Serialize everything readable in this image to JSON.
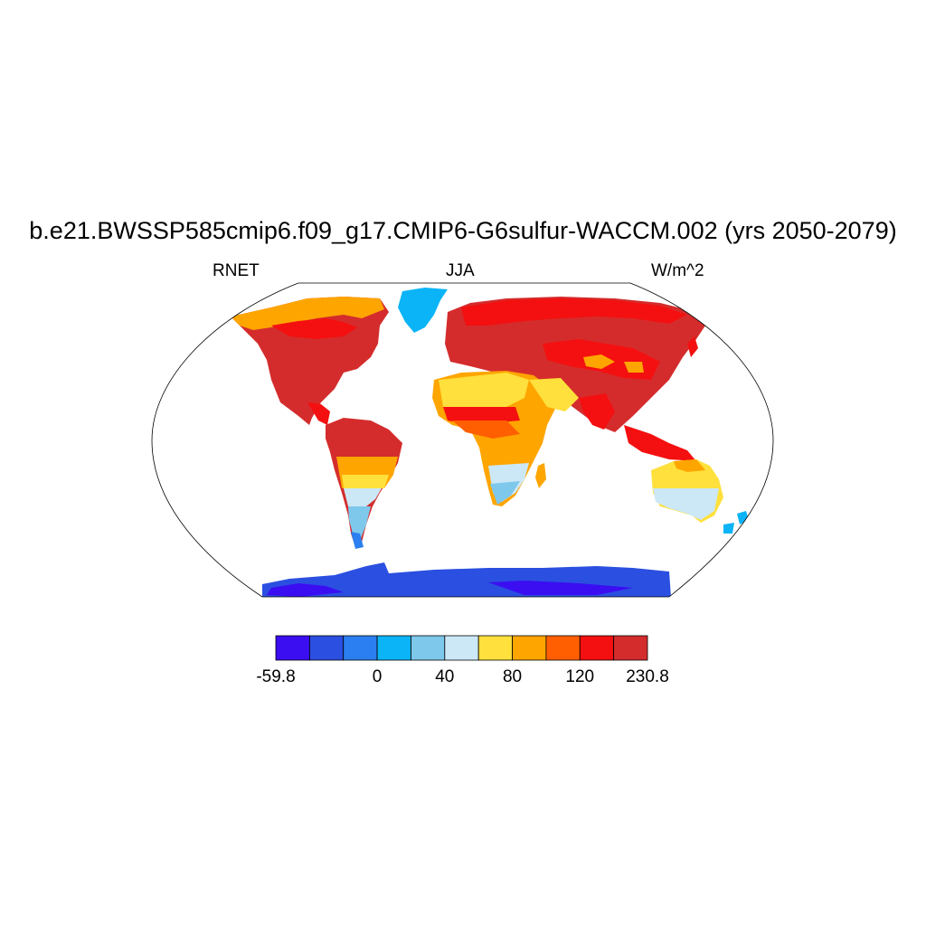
{
  "title": "b.e21.BWSSP585cmip6.f09_g17.CMIP6-G6sulfur-WACCM.002 (yrs 2050-2079)",
  "subtitle_left": "RNET",
  "subtitle_center": "JJA",
  "subtitle_right": "W/m^2",
  "colorbar": {
    "colors": [
      "#3b0ef2",
      "#2b4fe0",
      "#2b7ff0",
      "#0ab4f6",
      "#7ec8ec",
      "#cce8f6",
      "#ffe03c",
      "#ffa500",
      "#ff5f00",
      "#f41010",
      "#d42c2c"
    ],
    "labels": [
      "-59.8",
      "0",
      "40",
      "80",
      "120",
      "230.8"
    ]
  },
  "map": {
    "projection": "Robinson",
    "ocean_color": "#ffffff",
    "coastline_color": "#000000"
  }
}
